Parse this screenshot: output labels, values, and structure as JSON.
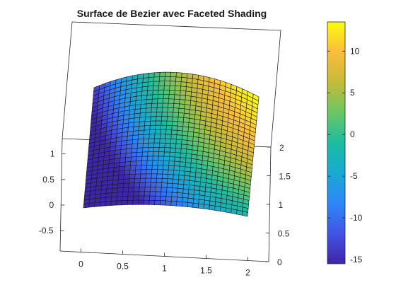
{
  "chart_data": {
    "type": "surface",
    "title": "Surface de Bezier avec Faceted Shading",
    "xlabel": "",
    "ylabel": "",
    "zlabel": "",
    "shading": "faceted",
    "grid": false,
    "mesh_resolution": 30,
    "x_ticks": [
      "0",
      "0.5",
      "1",
      "1.5",
      "2"
    ],
    "y_ticks": [
      "0",
      "0.5",
      "1",
      "1.5",
      "2"
    ],
    "z_ticks": [
      "-0.5",
      "0",
      "0.5",
      "1"
    ],
    "xlim": [
      -0.25,
      2.25
    ],
    "ylim": [
      0,
      2
    ],
    "zlim": [
      -0.9,
      1.3
    ],
    "colorbar": {
      "range": [
        -15.5,
        13.5
      ],
      "ticks": [
        "-15",
        "-10",
        "-5",
        "0",
        "5",
        "10"
      ],
      "colormap": "parula",
      "placement": "right"
    }
  }
}
